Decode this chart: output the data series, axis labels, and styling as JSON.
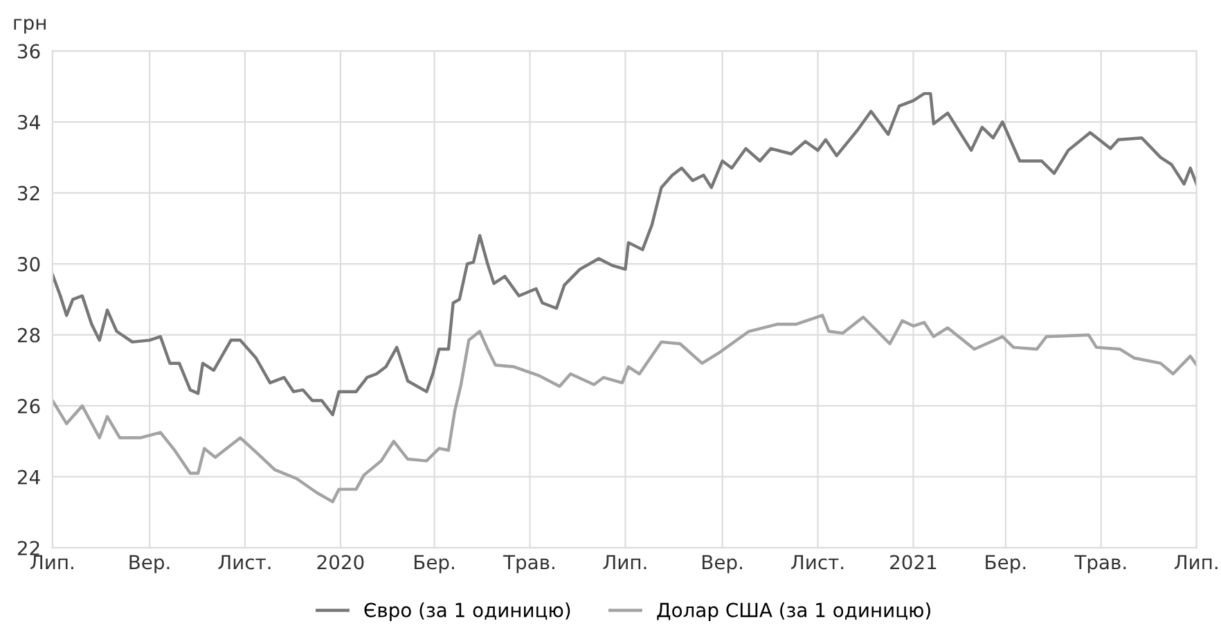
{
  "chart_data": {
    "type": "line",
    "ylabel": "грн",
    "ylim": [
      22,
      36
    ],
    "yticks": [
      22,
      24,
      26,
      28,
      30,
      32,
      34,
      36
    ],
    "xlim": [
      "2019-07-01",
      "2021-07-01"
    ],
    "xticks": [
      {
        "value": "2019-07-01",
        "label": "Лип."
      },
      {
        "value": "2019-09-01",
        "label": "Вер."
      },
      {
        "value": "2019-11-01",
        "label": "Лист."
      },
      {
        "value": "2020-01-01",
        "label": "2020"
      },
      {
        "value": "2020-03-01",
        "label": "Бер."
      },
      {
        "value": "2020-05-01",
        "label": "Трав."
      },
      {
        "value": "2020-07-01",
        "label": "Лип."
      },
      {
        "value": "2020-09-01",
        "label": "Вер."
      },
      {
        "value": "2020-11-01",
        "label": "Лист."
      },
      {
        "value": "2021-01-01",
        "label": "2021"
      },
      {
        "value": "2021-03-01",
        "label": "Бер."
      },
      {
        "value": "2021-05-01",
        "label": "Трав."
      },
      {
        "value": "2021-07-01",
        "label": "Лип."
      }
    ],
    "grid": true,
    "legend": "bottom",
    "marker": "none",
    "line_style": "solid",
    "series": [
      {
        "name": "Євро (за 1 одиницю)",
        "color": "#777777",
        "x": [
          "2019-07-01",
          "2019-07-06",
          "2019-07-10",
          "2019-07-14",
          "2019-07-20",
          "2019-07-26",
          "2019-07-31",
          "2019-08-05",
          "2019-08-11",
          "2019-08-21",
          "2019-09-01",
          "2019-09-08",
          "2019-09-14",
          "2019-09-20",
          "2019-09-27",
          "2019-10-02",
          "2019-10-05",
          "2019-10-12",
          "2019-10-23",
          "2019-10-29",
          "2019-11-08",
          "2019-11-17",
          "2019-11-26",
          "2019-12-02",
          "2019-12-08",
          "2019-12-14",
          "2019-12-20",
          "2019-12-27",
          "2019-12-31",
          "2020-01-11",
          "2020-01-18",
          "2020-01-24",
          "2020-01-30",
          "2020-02-06",
          "2020-02-13",
          "2020-02-25",
          "2020-02-29",
          "2020-03-04",
          "2020-03-10",
          "2020-03-13",
          "2020-03-17",
          "2020-03-22",
          "2020-03-26",
          "2020-03-30",
          "2020-04-04",
          "2020-04-08",
          "2020-04-15",
          "2020-04-24",
          "2020-05-05",
          "2020-05-09",
          "2020-05-18",
          "2020-05-23",
          "2020-06-02",
          "2020-06-14",
          "2020-06-23",
          "2020-07-01",
          "2020-07-03",
          "2020-07-12",
          "2020-07-18",
          "2020-07-24",
          "2020-07-31",
          "2020-08-06",
          "2020-08-13",
          "2020-08-20",
          "2020-08-25",
          "2020-09-01",
          "2020-09-07",
          "2020-09-16",
          "2020-09-25",
          "2020-10-02",
          "2020-10-15",
          "2020-10-24",
          "2020-11-01",
          "2020-11-06",
          "2020-11-13",
          "2020-11-26",
          "2020-12-05",
          "2020-12-16",
          "2020-12-23",
          "2021-01-01",
          "2021-01-08",
          "2021-01-12",
          "2021-01-14",
          "2021-01-23",
          "2021-02-07",
          "2021-02-14",
          "2021-02-21",
          "2021-02-27",
          "2021-03-10",
          "2021-03-24",
          "2021-04-01",
          "2021-04-10",
          "2021-04-24",
          "2021-05-07",
          "2021-05-12",
          "2021-05-27",
          "2021-06-08",
          "2021-06-15",
          "2021-06-23",
          "2021-06-27",
          "2021-07-01"
        ],
        "values": [
          29.7,
          29.1,
          28.55,
          29.0,
          29.1,
          28.3,
          27.85,
          28.7,
          28.1,
          27.8,
          27.85,
          27.95,
          27.2,
          27.2,
          26.45,
          26.35,
          27.2,
          27.0,
          27.85,
          27.85,
          27.35,
          26.65,
          26.8,
          26.4,
          26.45,
          26.15,
          26.15,
          25.75,
          26.4,
          26.4,
          26.8,
          26.9,
          27.1,
          27.65,
          26.7,
          26.4,
          26.9,
          27.6,
          27.6,
          28.9,
          29.0,
          30.0,
          30.05,
          30.8,
          30.0,
          29.45,
          29.65,
          29.1,
          29.3,
          28.9,
          28.75,
          29.4,
          29.85,
          30.15,
          29.95,
          29.85,
          30.6,
          30.4,
          31.1,
          32.15,
          32.5,
          32.7,
          32.35,
          32.5,
          32.15,
          32.9,
          32.7,
          33.25,
          32.9,
          33.25,
          33.1,
          33.45,
          33.2,
          33.5,
          33.05,
          33.75,
          34.3,
          33.65,
          34.45,
          34.6,
          34.8,
          34.8,
          33.95,
          34.25,
          33.2,
          33.85,
          33.55,
          34.0,
          32.9,
          32.9,
          32.55,
          33.2,
          33.7,
          33.25,
          33.5,
          33.55,
          33.0,
          32.8,
          32.25,
          32.7,
          32.25
        ]
      },
      {
        "name": "Долар США (за 1 одиницю)",
        "color": "#a3a3a3",
        "x": [
          "2019-07-01",
          "2019-07-10",
          "2019-07-20",
          "2019-07-31",
          "2019-08-05",
          "2019-08-13",
          "2019-08-26",
          "2019-09-08",
          "2019-09-17",
          "2019-09-27",
          "2019-10-02",
          "2019-10-06",
          "2019-10-13",
          "2019-10-29",
          "2019-11-08",
          "2019-11-20",
          "2019-12-04",
          "2019-12-17",
          "2019-12-27",
          "2019-12-31",
          "2020-01-11",
          "2020-01-16",
          "2020-01-27",
          "2020-02-04",
          "2020-02-13",
          "2020-02-25",
          "2020-03-04",
          "2020-03-10",
          "2020-03-14",
          "2020-03-18",
          "2020-03-23",
          "2020-03-30",
          "2020-04-04",
          "2020-04-09",
          "2020-04-21",
          "2020-05-07",
          "2020-05-20",
          "2020-05-27",
          "2020-06-11",
          "2020-06-17",
          "2020-06-29",
          "2020-07-03",
          "2020-07-10",
          "2020-07-24",
          "2020-08-05",
          "2020-08-19",
          "2020-08-30",
          "2020-09-18",
          "2020-10-06",
          "2020-10-18",
          "2020-11-04",
          "2020-11-08",
          "2020-11-17",
          "2020-11-30",
          "2020-12-17",
          "2020-12-25",
          "2021-01-01",
          "2021-01-08",
          "2021-01-14",
          "2021-01-23",
          "2021-02-09",
          "2021-02-27",
          "2021-03-06",
          "2021-03-21",
          "2021-03-27",
          "2021-04-23",
          "2021-04-28",
          "2021-05-13",
          "2021-05-22",
          "2021-06-08",
          "2021-06-16",
          "2021-06-27",
          "2021-07-01"
        ],
        "values": [
          26.15,
          25.5,
          26.0,
          25.1,
          25.7,
          25.1,
          25.1,
          25.25,
          24.75,
          24.1,
          24.1,
          24.8,
          24.55,
          25.1,
          24.7,
          24.2,
          23.95,
          23.55,
          23.3,
          23.65,
          23.65,
          24.05,
          24.45,
          25.0,
          24.5,
          24.45,
          24.8,
          24.75,
          25.85,
          26.6,
          27.85,
          28.1,
          27.6,
          27.15,
          27.1,
          26.85,
          26.55,
          26.9,
          26.6,
          26.8,
          26.65,
          27.1,
          26.9,
          27.8,
          27.75,
          27.2,
          27.5,
          28.1,
          28.3,
          28.3,
          28.55,
          28.1,
          28.05,
          28.5,
          27.75,
          28.4,
          28.25,
          28.35,
          27.95,
          28.2,
          27.6,
          27.95,
          27.65,
          27.6,
          27.95,
          28.0,
          27.65,
          27.6,
          27.35,
          27.2,
          26.9,
          27.4,
          27.15
        ]
      }
    ]
  }
}
